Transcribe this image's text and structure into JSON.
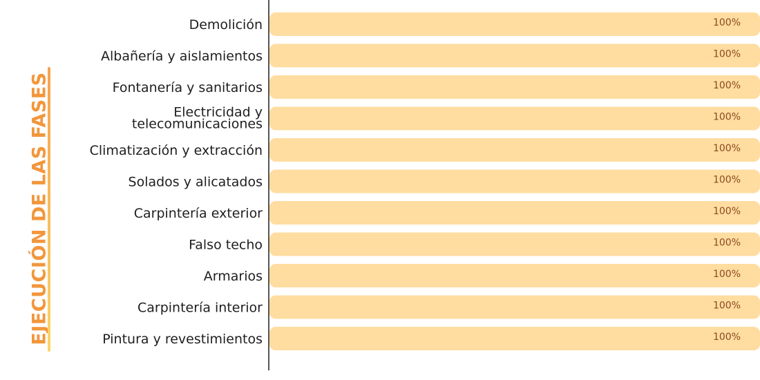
{
  "page": {
    "side_title": "EJECUCIÓN DE LAS FASES"
  },
  "colors": {
    "bar": "#ffdca0",
    "title": "#f2963c",
    "value_text": "#8a4a1f",
    "axis": "#555555"
  },
  "chart_data": {
    "type": "bar",
    "orientation": "horizontal",
    "title": "",
    "xlabel": "",
    "ylabel": "",
    "xlim": [
      0,
      100
    ],
    "grid": false,
    "legend": "none",
    "categories": [
      "Demolición",
      "Albañería y aislamientos",
      "Fontanería y sanitarios",
      "Electricidad y telecomunicaciones",
      "Climatización y extracción",
      "Solados y alicatados",
      "Carpintería exterior",
      "Falso techo",
      "Armarios",
      "Carpintería interior",
      "Pintura y revestimientos"
    ],
    "values": [
      100,
      100,
      100,
      100,
      100,
      100,
      100,
      100,
      100,
      100,
      100
    ],
    "value_labels": [
      "100%",
      "100%",
      "100%",
      "100%",
      "100%",
      "100%",
      "100%",
      "100%",
      "100%",
      "100%",
      "100%"
    ]
  }
}
